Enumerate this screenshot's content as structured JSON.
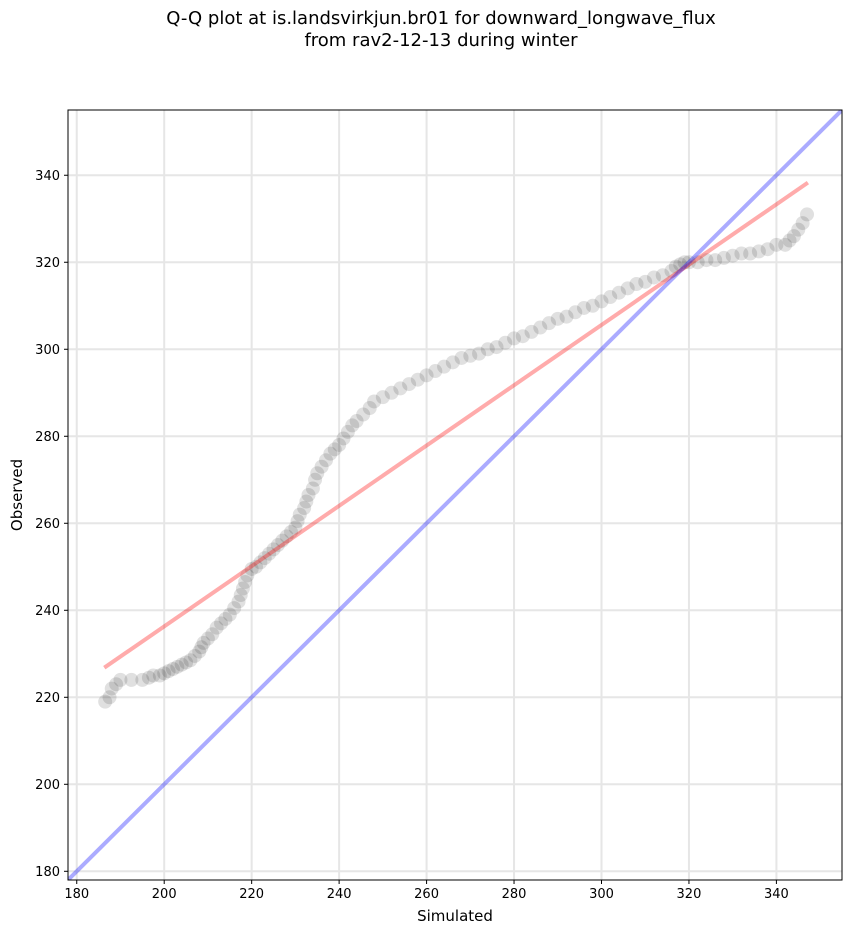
{
  "chart_data": {
    "type": "scatter",
    "title": [
      "Q-Q plot at is.landsvirkjun.br01 for downward_longwave_flux",
      "from rav2-12-13 during winter"
    ],
    "xlabel": "Simulated",
    "ylabel": "Observed",
    "xlim": [
      178,
      355
    ],
    "ylim": [
      178,
      355
    ],
    "xticks": [
      180,
      200,
      220,
      240,
      260,
      280,
      300,
      320,
      340
    ],
    "yticks": [
      180,
      200,
      220,
      240,
      260,
      280,
      300,
      320,
      340
    ],
    "grid": true,
    "series": [
      {
        "name": "quantiles",
        "color": "#000000",
        "points": [
          [
            186.5,
            219
          ],
          [
            187.5,
            220
          ],
          [
            188,
            222
          ],
          [
            189,
            223
          ],
          [
            190,
            224
          ],
          [
            192.5,
            224
          ],
          [
            195,
            224
          ],
          [
            196.5,
            224.5
          ],
          [
            197.5,
            225
          ],
          [
            199,
            225
          ],
          [
            200,
            225.5
          ],
          [
            201,
            226
          ],
          [
            202,
            226.5
          ],
          [
            203,
            227
          ],
          [
            204,
            227.5
          ],
          [
            205,
            228
          ],
          [
            206,
            228.5
          ],
          [
            207,
            229.5
          ],
          [
            208,
            230.5
          ],
          [
            208.5,
            231.5
          ],
          [
            209,
            232.5
          ],
          [
            210,
            233.5
          ],
          [
            211,
            234.5
          ],
          [
            212,
            236
          ],
          [
            213,
            237
          ],
          [
            214,
            238
          ],
          [
            215,
            239
          ],
          [
            216,
            240.5
          ],
          [
            217,
            242
          ],
          [
            217.5,
            243.5
          ],
          [
            218,
            245
          ],
          [
            218.5,
            246.5
          ],
          [
            219,
            248
          ],
          [
            220,
            249.5
          ],
          [
            221,
            250
          ],
          [
            222,
            251
          ],
          [
            223,
            252
          ],
          [
            224,
            253
          ],
          [
            225,
            254
          ],
          [
            226,
            255
          ],
          [
            227,
            256
          ],
          [
            228,
            257
          ],
          [
            229,
            258
          ],
          [
            230,
            259
          ],
          [
            230.5,
            260.5
          ],
          [
            231,
            262
          ],
          [
            232,
            263.5
          ],
          [
            232.5,
            265
          ],
          [
            233,
            266.5
          ],
          [
            234,
            268
          ],
          [
            234.5,
            270
          ],
          [
            235,
            271.5
          ],
          [
            236,
            273
          ],
          [
            237,
            274.5
          ],
          [
            238,
            276
          ],
          [
            239,
            277
          ],
          [
            240,
            278
          ],
          [
            241,
            279.5
          ],
          [
            242,
            281
          ],
          [
            243,
            282.5
          ],
          [
            244,
            283.5
          ],
          [
            245.5,
            285
          ],
          [
            247,
            286.5
          ],
          [
            248,
            288
          ],
          [
            250,
            289
          ],
          [
            252,
            290
          ],
          [
            254,
            291
          ],
          [
            256,
            292
          ],
          [
            258,
            293
          ],
          [
            260,
            294
          ],
          [
            262,
            295
          ],
          [
            264,
            296
          ],
          [
            266,
            297
          ],
          [
            268,
            298
          ],
          [
            270,
            298.5
          ],
          [
            272,
            299
          ],
          [
            274,
            300
          ],
          [
            276,
            300.5
          ],
          [
            278,
            301.5
          ],
          [
            280,
            302.5
          ],
          [
            282,
            303
          ],
          [
            284,
            304
          ],
          [
            286,
            305
          ],
          [
            288,
            306
          ],
          [
            290,
            307
          ],
          [
            292,
            307.5
          ],
          [
            294,
            308.5
          ],
          [
            296,
            309.5
          ],
          [
            298,
            310
          ],
          [
            300,
            311
          ],
          [
            302,
            312
          ],
          [
            304,
            313
          ],
          [
            306,
            314
          ],
          [
            308,
            315
          ],
          [
            310,
            315.5
          ],
          [
            312,
            316.5
          ],
          [
            314,
            317
          ],
          [
            316,
            318
          ],
          [
            317,
            319
          ],
          [
            318,
            319.5
          ],
          [
            319,
            320
          ],
          [
            320,
            320
          ],
          [
            322,
            320
          ],
          [
            324,
            320.5
          ],
          [
            326,
            320.5
          ],
          [
            328,
            321
          ],
          [
            330,
            321.5
          ],
          [
            332,
            322
          ],
          [
            334,
            322
          ],
          [
            336,
            322.5
          ],
          [
            338,
            323
          ],
          [
            340,
            324
          ],
          [
            342,
            324
          ],
          [
            343,
            325
          ],
          [
            344,
            326
          ],
          [
            345,
            327.5
          ],
          [
            346,
            329
          ],
          [
            347,
            331
          ]
        ]
      },
      {
        "name": "fit-line",
        "color": "#ff0000",
        "x": [
          186.3,
          347.2
        ],
        "y": [
          226.8,
          338.3
        ]
      },
      {
        "name": "identity-line",
        "color": "#0000ff",
        "x": [
          178,
          355
        ],
        "y": [
          178,
          355
        ]
      }
    ]
  }
}
